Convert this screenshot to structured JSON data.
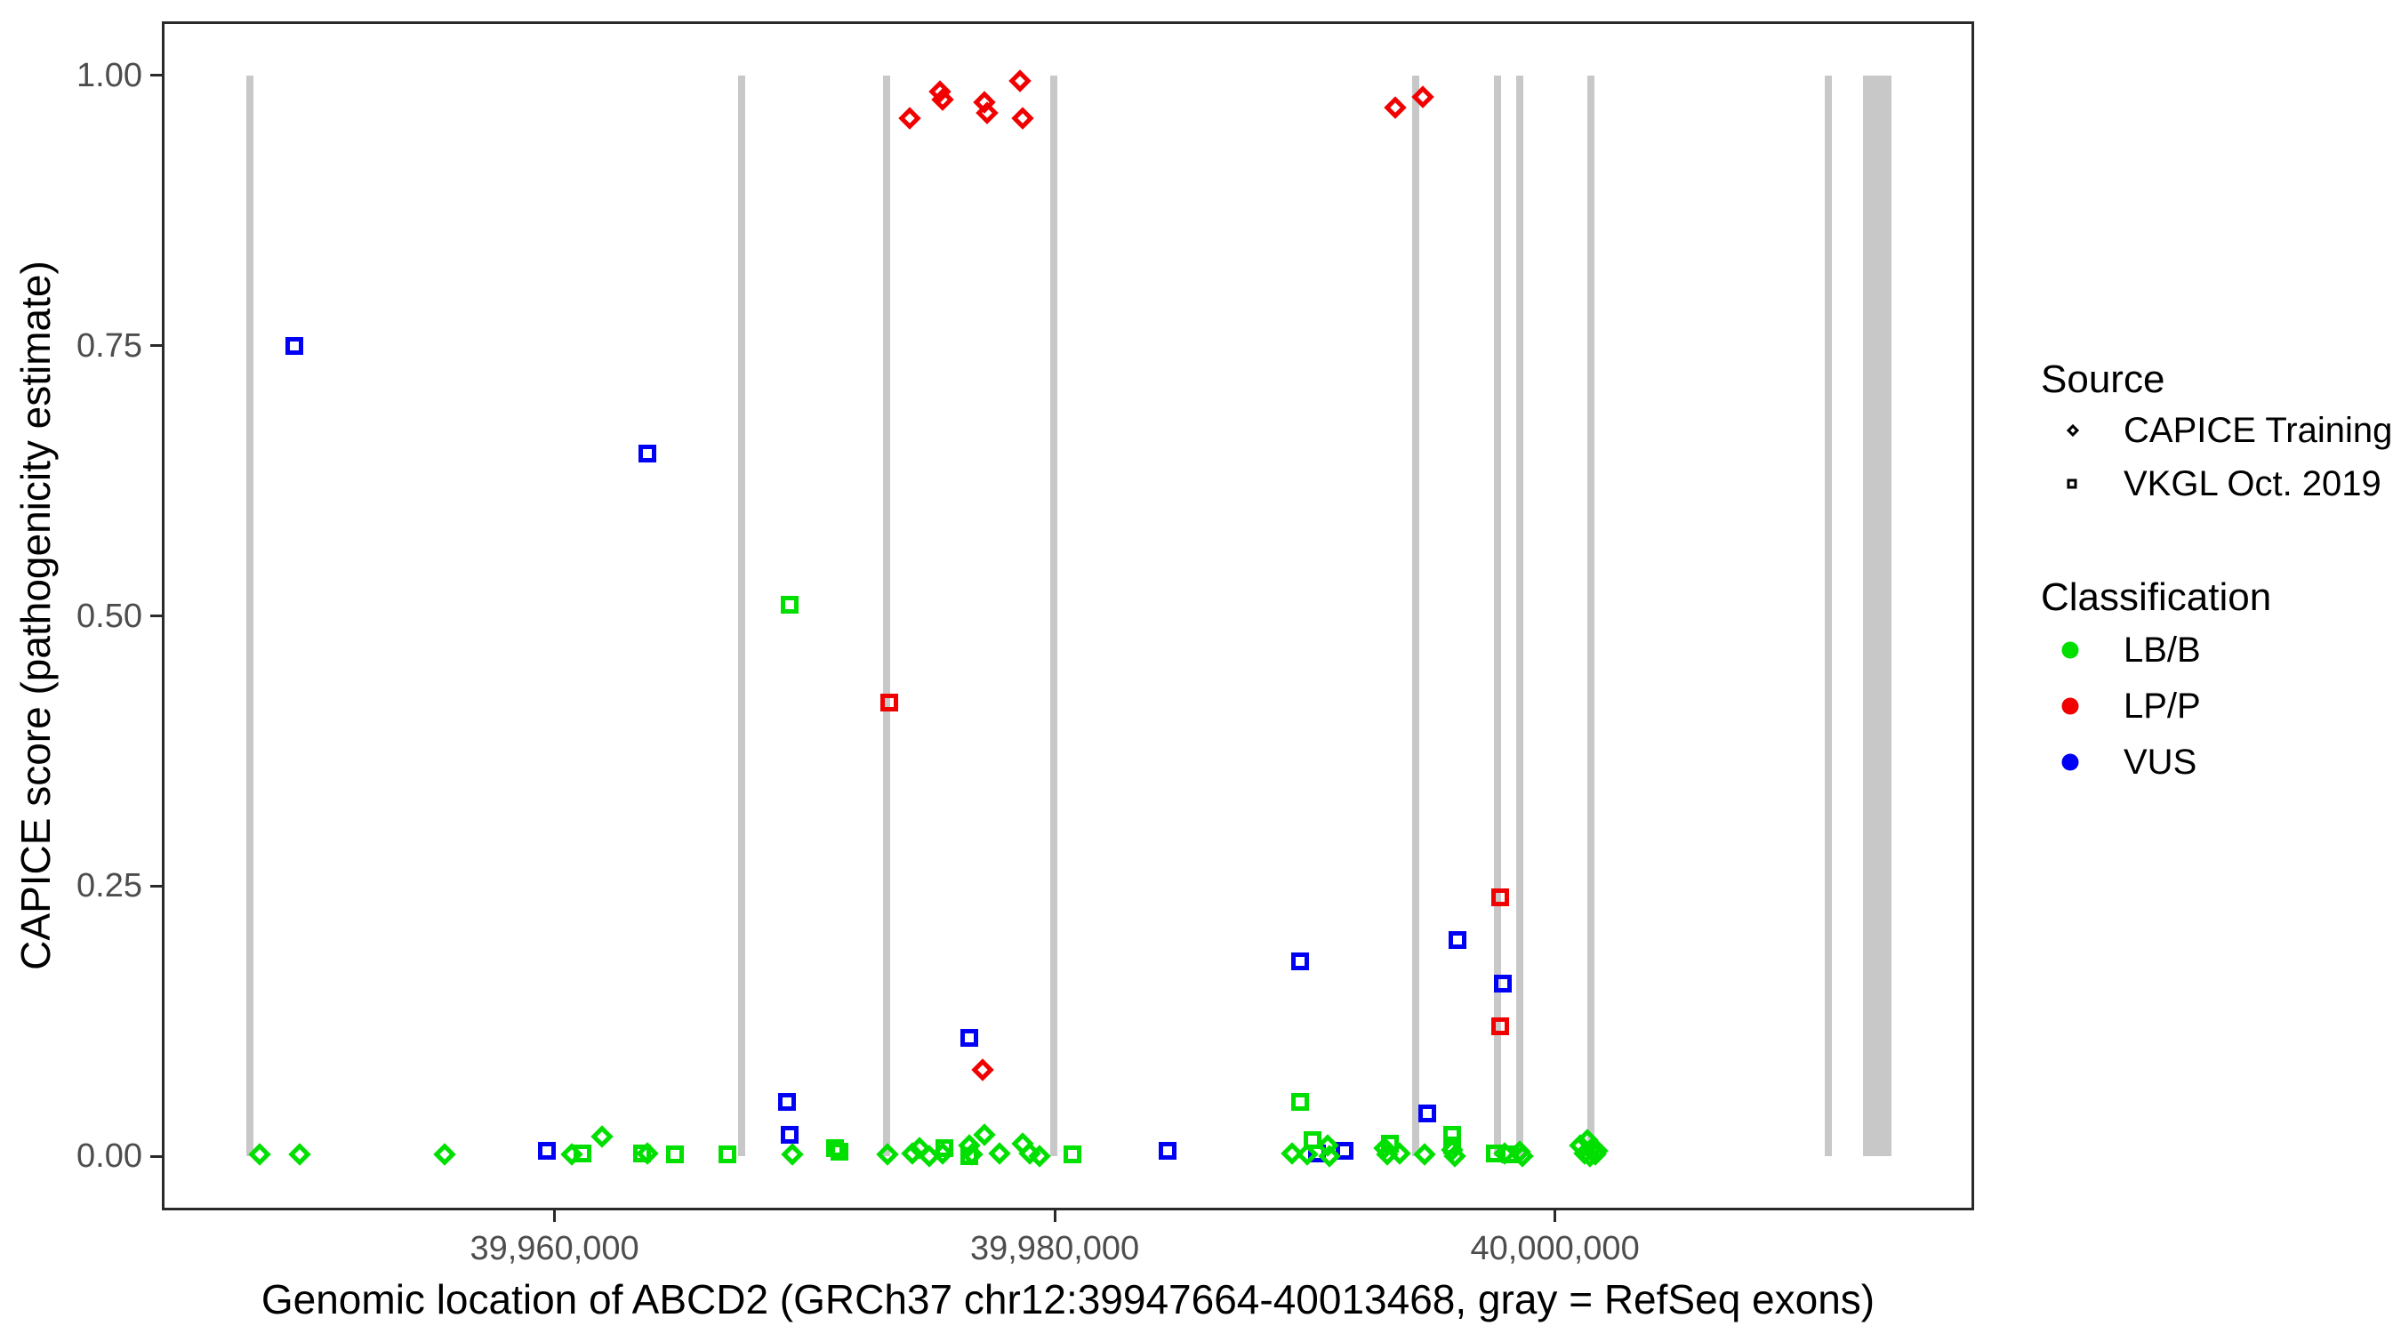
{
  "legend": {
    "source_title": "Source",
    "source_items": [
      {
        "label": "CAPICE Training",
        "shape": "diamond"
      },
      {
        "label": "VKGL Oct. 2019",
        "shape": "square"
      }
    ],
    "classification_title": "Classification",
    "classes": [
      {
        "label": "LB/B",
        "color": "#00df00"
      },
      {
        "label": "LP/P",
        "color": "#f10000"
      },
      {
        "label": "VUS",
        "color": "#0000f5"
      }
    ]
  },
  "chart_data": {
    "type": "scatter",
    "xlabel": "Genomic location of ABCD2 (GRCh37 chr12:39947664-40013468, gray = RefSeq exons)",
    "ylabel": "CAPICE score (pathogenicity estimate)",
    "x_domain": [
      39944300,
      40016760
    ],
    "y_domain": [
      -0.05,
      1.05
    ],
    "x_ticks": [
      {
        "value": 39960000,
        "label": "39,960,000"
      },
      {
        "value": 39980000,
        "label": "39,980,000"
      },
      {
        "value": 40000000,
        "label": "40,000,000"
      }
    ],
    "y_ticks": [
      {
        "value": 0.0,
        "label": "0.00"
      },
      {
        "value": 0.25,
        "label": "0.25"
      },
      {
        "value": 0.5,
        "label": "0.50"
      },
      {
        "value": 0.75,
        "label": "0.75"
      },
      {
        "value": 1.0,
        "label": "1.00"
      }
    ],
    "grid": false,
    "legend_position": "right",
    "colors": {
      "exon": "#c8c8c8",
      "panel_border": "#2a2a2a",
      "tick_label": "#4d4d4d",
      "LB/B": "#00df00",
      "LP/P": "#f10000",
      "VUS": "#0000f5"
    },
    "shape_by_source": {
      "CAPICE Training": "diamond",
      "VKGL Oct. 2019": "square"
    },
    "exons_bp": [
      [
        39947664,
        39947950
      ],
      [
        39967350,
        39967640
      ],
      [
        39973140,
        39973420
      ],
      [
        39979820,
        39980100
      ],
      [
        39994280,
        39994560
      ],
      [
        39997550,
        39997830
      ],
      [
        39998440,
        39998720
      ],
      [
        40001280,
        40001560
      ],
      [
        40010770,
        40011050
      ],
      [
        40012300,
        40013468
      ]
    ],
    "points": [
      [
        39974200,
        0.96,
        "LP/P",
        "CAPICE Training"
      ],
      [
        39975400,
        0.985,
        "LP/P",
        "CAPICE Training"
      ],
      [
        39975500,
        0.978,
        "LP/P",
        "CAPICE Training"
      ],
      [
        39977200,
        0.975,
        "LP/P",
        "CAPICE Training"
      ],
      [
        39977300,
        0.965,
        "LP/P",
        "CAPICE Training"
      ],
      [
        39978600,
        0.995,
        "LP/P",
        "CAPICE Training"
      ],
      [
        39978700,
        0.96,
        "LP/P",
        "CAPICE Training"
      ],
      [
        39993600,
        0.97,
        "LP/P",
        "CAPICE Training"
      ],
      [
        39994700,
        0.98,
        "LP/P",
        "CAPICE Training"
      ],
      [
        39977100,
        0.08,
        "LP/P",
        "CAPICE Training"
      ],
      [
        39973400,
        0.42,
        "LP/P",
        "VKGL Oct. 2019"
      ],
      [
        39997800,
        0.24,
        "LP/P",
        "VKGL Oct. 2019"
      ],
      [
        39997800,
        0.12,
        "LP/P",
        "VKGL Oct. 2019"
      ],
      [
        39949600,
        0.75,
        "VUS",
        "VKGL Oct. 2019"
      ],
      [
        39963700,
        0.65,
        "VUS",
        "VKGL Oct. 2019"
      ],
      [
        39976600,
        0.11,
        "VUS",
        "VKGL Oct. 2019"
      ],
      [
        39996100,
        0.2,
        "VUS",
        "VKGL Oct. 2019"
      ],
      [
        39989800,
        0.18,
        "VUS",
        "VKGL Oct. 2019"
      ],
      [
        39997900,
        0.16,
        "VUS",
        "VKGL Oct. 2019"
      ],
      [
        39994900,
        0.04,
        "VUS",
        "VKGL Oct. 2019"
      ],
      [
        39969300,
        0.05,
        "VUS",
        "VKGL Oct. 2019"
      ],
      [
        39969400,
        0.02,
        "VUS",
        "VKGL Oct. 2019"
      ],
      [
        39959700,
        0.005,
        "VUS",
        "VKGL Oct. 2019"
      ],
      [
        39984500,
        0.005,
        "VUS",
        "VKGL Oct. 2019"
      ],
      [
        39990500,
        0.003,
        "VUS",
        "VKGL Oct. 2019"
      ],
      [
        39991600,
        0.005,
        "VUS",
        "VKGL Oct. 2019"
      ],
      [
        39969400,
        0.51,
        "LB/B",
        "VKGL Oct. 2019"
      ],
      [
        39989800,
        0.05,
        "LB/B",
        "VKGL Oct. 2019"
      ],
      [
        39961100,
        0.003,
        "LB/B",
        "VKGL Oct. 2019"
      ],
      [
        39963500,
        0.003,
        "LB/B",
        "VKGL Oct. 2019"
      ],
      [
        39964800,
        0.002,
        "LB/B",
        "VKGL Oct. 2019"
      ],
      [
        39966900,
        0.002,
        "LB/B",
        "VKGL Oct. 2019"
      ],
      [
        39971200,
        0.008,
        "LB/B",
        "VKGL Oct. 2019"
      ],
      [
        39971400,
        0.004,
        "LB/B",
        "VKGL Oct. 2019"
      ],
      [
        39975600,
        0.008,
        "LB/B",
        "VKGL Oct. 2019"
      ],
      [
        39976600,
        0.0,
        "LB/B",
        "VKGL Oct. 2019"
      ],
      [
        39980700,
        0.002,
        "LB/B",
        "VKGL Oct. 2019"
      ],
      [
        39990300,
        0.015,
        "LB/B",
        "VKGL Oct. 2019"
      ],
      [
        39993400,
        0.012,
        "LB/B",
        "VKGL Oct. 2019"
      ],
      [
        39995900,
        0.02,
        "LB/B",
        "VKGL Oct. 2019"
      ],
      [
        39995900,
        0.01,
        "LB/B",
        "VKGL Oct. 2019"
      ],
      [
        39997600,
        0.003,
        "LB/B",
        "VKGL Oct. 2019"
      ],
      [
        39998200,
        0.002,
        "LB/B",
        "VKGL Oct. 2019"
      ],
      [
        39948200,
        0.002,
        "LB/B",
        "CAPICE Training"
      ],
      [
        39949800,
        0.002,
        "LB/B",
        "CAPICE Training"
      ],
      [
        39955600,
        0.002,
        "LB/B",
        "CAPICE Training"
      ],
      [
        39960700,
        0.002,
        "LB/B",
        "CAPICE Training"
      ],
      [
        39961900,
        0.018,
        "LB/B",
        "CAPICE Training"
      ],
      [
        39963700,
        0.003,
        "LB/B",
        "CAPICE Training"
      ],
      [
        39969500,
        0.002,
        "LB/B",
        "CAPICE Training"
      ],
      [
        39973300,
        0.002,
        "LB/B",
        "CAPICE Training"
      ],
      [
        39974300,
        0.003,
        "LB/B",
        "CAPICE Training"
      ],
      [
        39974600,
        0.008,
        "LB/B",
        "CAPICE Training"
      ],
      [
        39975000,
        0.0,
        "LB/B",
        "CAPICE Training"
      ],
      [
        39975500,
        0.003,
        "LB/B",
        "CAPICE Training"
      ],
      [
        39976600,
        0.01,
        "LB/B",
        "CAPICE Training"
      ],
      [
        39976700,
        0.002,
        "LB/B",
        "CAPICE Training"
      ],
      [
        39977200,
        0.02,
        "LB/B",
        "CAPICE Training"
      ],
      [
        39977800,
        0.003,
        "LB/B",
        "CAPICE Training"
      ],
      [
        39978700,
        0.012,
        "LB/B",
        "CAPICE Training"
      ],
      [
        39979000,
        0.003,
        "LB/B",
        "CAPICE Training"
      ],
      [
        39979400,
        0.0,
        "LB/B",
        "CAPICE Training"
      ],
      [
        39989500,
        0.003,
        "LB/B",
        "CAPICE Training"
      ],
      [
        39990100,
        0.002,
        "LB/B",
        "CAPICE Training"
      ],
      [
        39990900,
        0.01,
        "LB/B",
        "CAPICE Training"
      ],
      [
        39991000,
        0.0,
        "LB/B",
        "CAPICE Training"
      ],
      [
        39993200,
        0.008,
        "LB/B",
        "CAPICE Training"
      ],
      [
        39993300,
        0.002,
        "LB/B",
        "CAPICE Training"
      ],
      [
        39993800,
        0.003,
        "LB/B",
        "CAPICE Training"
      ],
      [
        39994800,
        0.002,
        "LB/B",
        "CAPICE Training"
      ],
      [
        39995900,
        0.006,
        "LB/B",
        "CAPICE Training"
      ],
      [
        39996000,
        0.0,
        "LB/B",
        "CAPICE Training"
      ],
      [
        39998000,
        0.003,
        "LB/B",
        "CAPICE Training"
      ],
      [
        39998600,
        0.004,
        "LB/B",
        "CAPICE Training"
      ],
      [
        39998700,
        0.0,
        "LB/B",
        "CAPICE Training"
      ],
      [
        40001000,
        0.01,
        "LB/B",
        "CAPICE Training"
      ],
      [
        40001200,
        0.003,
        "LB/B",
        "CAPICE Training"
      ],
      [
        40001300,
        0.015,
        "LB/B",
        "CAPICE Training"
      ],
      [
        40001400,
        0.0,
        "LB/B",
        "CAPICE Training"
      ],
      [
        40001500,
        0.008,
        "LB/B",
        "CAPICE Training"
      ],
      [
        40001600,
        0.002,
        "LB/B",
        "CAPICE Training"
      ],
      [
        40001700,
        0.005,
        "LB/B",
        "CAPICE Training"
      ]
    ]
  }
}
